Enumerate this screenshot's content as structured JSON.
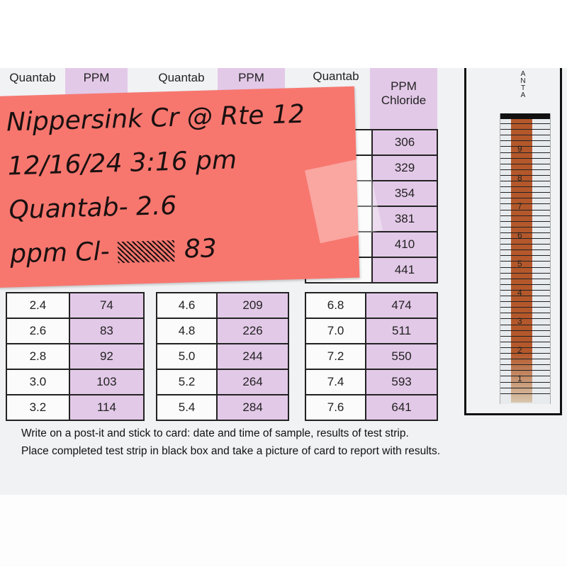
{
  "card": {
    "headers": {
      "quantab": "Quantab",
      "ppm": "PPM",
      "ppm_chloride_line2": "Chloride"
    },
    "table1": [
      [
        "2.4",
        "74"
      ],
      [
        "2.6",
        "83"
      ],
      [
        "2.8",
        "92"
      ],
      [
        "3.0",
        "103"
      ],
      [
        "3.2",
        "114"
      ]
    ],
    "table2": [
      [
        "4.6",
        "209"
      ],
      [
        "4.8",
        "226"
      ],
      [
        "5.0",
        "244"
      ],
      [
        "5.2",
        "264"
      ],
      [
        "5.4",
        "284"
      ]
    ],
    "table3_ppm_top": [
      "306",
      "329",
      "354",
      "381",
      "410",
      "441"
    ],
    "table3": [
      [
        "6.8",
        "474"
      ],
      [
        "7.0",
        "511"
      ],
      [
        "7.2",
        "550"
      ],
      [
        "7.4",
        "593"
      ],
      [
        "7.6",
        "641"
      ]
    ],
    "instructions": [
      "Write on a post-it and stick to card: date and time of sample, results of test strip.",
      "Place completed test strip in black box and take a picture of card to report with results."
    ]
  },
  "postit": {
    "line1": "Nippersink Cr @ Rte 12",
    "line2": "12/16/24  3:16 pm",
    "line3": "Quantab- 2.6",
    "line4_label": "ppm Cl-",
    "line4_value": "83",
    "color": "#f7776f"
  },
  "strip": {
    "brand_text": "QUANTAB",
    "scale_labels": [
      "9",
      "8",
      "7",
      "6",
      "5",
      "4",
      "3",
      "2",
      "1"
    ],
    "reading": 2.6,
    "fill_color": "#b4582b"
  }
}
